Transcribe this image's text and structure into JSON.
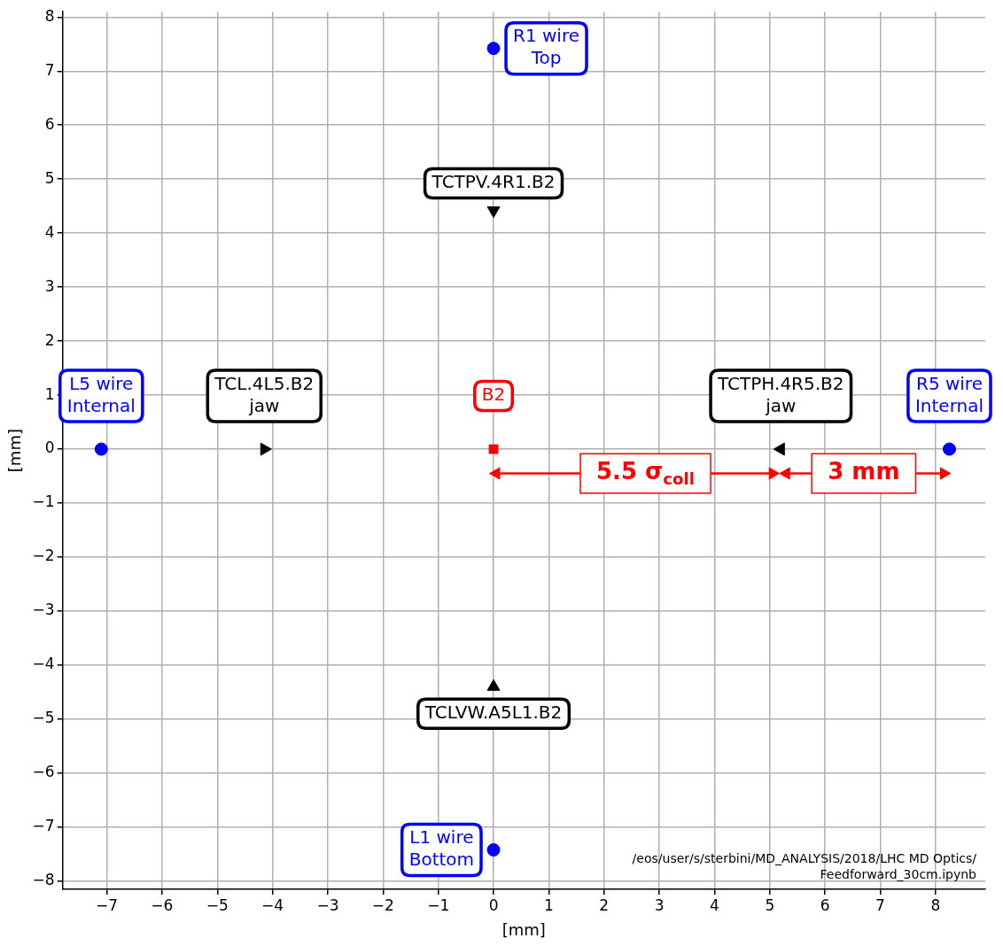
{
  "chart_data": {
    "type": "scatter",
    "xlabel": "[mm]",
    "ylabel": "[mm]",
    "xlim": [
      -7.8,
      8.9
    ],
    "ylim": [
      -8.15,
      8.1
    ],
    "xticks": [
      -7,
      -6,
      -5,
      -4,
      -3,
      -2,
      -1,
      0,
      1,
      2,
      3,
      4,
      5,
      6,
      7,
      8
    ],
    "yticks": [
      -8,
      -7,
      -6,
      -5,
      -4,
      -3,
      -2,
      -1,
      0,
      1,
      2,
      3,
      4,
      5,
      6,
      7,
      8
    ],
    "grid": true,
    "series": [
      {
        "type": "scatter",
        "marker": "circle",
        "color": "#0000ff",
        "x": [
          0,
          -7.1,
          8.25,
          0
        ],
        "values": [
          7.42,
          0,
          0,
          -7.42
        ]
      },
      {
        "type": "scatter",
        "marker": "square",
        "color": "#ff0000",
        "x": [
          0
        ],
        "values": [
          0
        ]
      },
      {
        "type": "scatter",
        "marker": "triangle",
        "color": "#000000",
        "x": [
          0,
          0,
          -4.15,
          5.2
        ],
        "values": [
          4.42,
          -4.4,
          0,
          0
        ]
      },
      {
        "type": "line",
        "marker": "triangle",
        "color": "#ff0000",
        "x": [
          0.05,
          5.05
        ],
        "values": [
          -0.45,
          -0.45
        ]
      },
      {
        "type": "line",
        "marker": "triangle",
        "color": "#ff0000",
        "x": [
          5.3,
          8.15
        ],
        "values": [
          -0.45,
          -0.45
        ]
      }
    ],
    "annotations": [
      {
        "text": "R1 wire\nTop",
        "x": 0,
        "y": 7.42
      },
      {
        "text": "TCTPV.4R1.B2",
        "x": 0,
        "y": 4.42
      },
      {
        "text": "L5 wire\nInternal",
        "x": -7.1,
        "y": 0
      },
      {
        "text": "TCL.4L5.B2\njaw",
        "x": -4.15,
        "y": 0
      },
      {
        "text": "B2",
        "x": 0,
        "y": 0
      },
      {
        "text": "TCTPH.4R5.B2\njaw",
        "x": 5.2,
        "y": 0
      },
      {
        "text": "R5 wire\nInternal",
        "x": 8.25,
        "y": 0
      },
      {
        "text": "TCLVW.A5L1.B2",
        "x": 0,
        "y": -4.4
      },
      {
        "text": "L1 wire\nBottom",
        "x": 0,
        "y": -7.42
      },
      {
        "text": "5.5 σ$_{coll}$",
        "x": 2.75,
        "y": -0.45
      },
      {
        "text": "3 mm",
        "x": 6.7,
        "y": -0.45
      },
      "/eos/user/s/sterbini/MD_ANALYSIS/2018/LHC MD Optics/\nFeedforward_30cm.ipynb"
    ]
  }
}
